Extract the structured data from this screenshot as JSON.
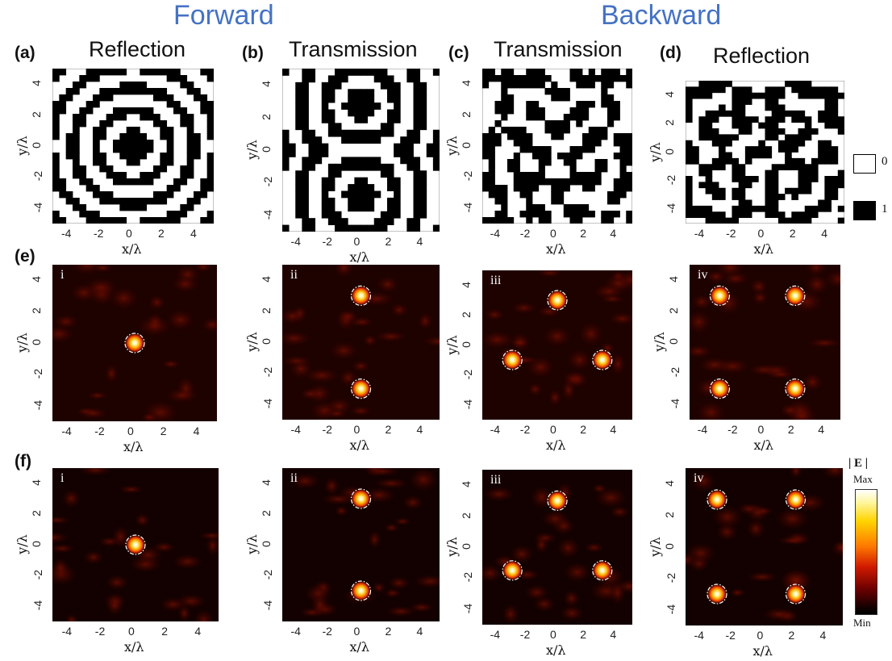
{
  "headers": {
    "forward": "Forward",
    "backward": "Backward"
  },
  "panel_labels": {
    "a": "(a)",
    "b": "(b)",
    "c": "(c)",
    "d": "(d)",
    "e": "(e)",
    "f": "(f)"
  },
  "panel_titles": {
    "a": "Reflection",
    "b": "Transmission",
    "c": "Transmission",
    "d": "Reflection"
  },
  "sub_labels": [
    "i",
    "ii",
    "iii",
    "iv"
  ],
  "axis": {
    "x": "x/λ",
    "y": "y/λ",
    "ticks": [
      "-4",
      "-2",
      "0",
      "2",
      "4"
    ],
    "yticks": [
      "4",
      "2",
      "0",
      "-2",
      "-4"
    ]
  },
  "binary_legend": {
    "zero": "0",
    "one": "1"
  },
  "colorbar": {
    "title": "| E |",
    "max": "Max",
    "min": "Min"
  },
  "colors": {
    "header": "#4472c4",
    "binary_one": "#000000",
    "binary_zero": "#ffffff"
  },
  "chart_data": [
    {
      "type": "heatmap",
      "panel": "a",
      "title": "Reflection",
      "xlabel": "x/λ",
      "ylabel": "y/λ",
      "xlim": [
        -5,
        5
      ],
      "ylim": [
        -5,
        5
      ],
      "pattern": "concentric rings (binary 0/1)"
    },
    {
      "type": "heatmap",
      "panel": "b",
      "title": "Transmission",
      "xlabel": "x/λ",
      "ylabel": "y/λ",
      "xlim": [
        -5,
        5
      ],
      "ylim": [
        -5,
        5
      ],
      "pattern": "binary two-lobe hologram"
    },
    {
      "type": "heatmap",
      "panel": "c",
      "title": "Transmission",
      "xlabel": "x/λ",
      "ylabel": "y/λ",
      "xlim": [
        -5,
        5
      ],
      "ylim": [
        -5,
        5
      ],
      "pattern": "binary three-focus hologram"
    },
    {
      "type": "heatmap",
      "panel": "d",
      "title": "Reflection",
      "xlabel": "x/λ",
      "ylabel": "y/λ",
      "xlim": [
        -5,
        5
      ],
      "ylim": [
        -5,
        5
      ],
      "pattern": "binary four-focus hologram"
    },
    {
      "type": "heatmap",
      "panel": "e.i",
      "xlabel": "x/λ",
      "ylabel": "y/λ",
      "foci": [
        [
          0,
          0
        ]
      ]
    },
    {
      "type": "heatmap",
      "panel": "e.ii",
      "xlabel": "x/λ",
      "ylabel": "y/λ",
      "foci": [
        [
          0,
          3
        ],
        [
          0,
          -3
        ]
      ]
    },
    {
      "type": "heatmap",
      "panel": "e.iii",
      "xlabel": "x/λ",
      "ylabel": "y/λ",
      "foci": [
        [
          0,
          3
        ],
        [
          -3,
          -1
        ],
        [
          3,
          -1
        ]
      ]
    },
    {
      "type": "heatmap",
      "panel": "e.iv",
      "xlabel": "x/λ",
      "ylabel": "y/λ",
      "foci": [
        [
          -3,
          3
        ],
        [
          2,
          3
        ],
        [
          -3,
          -3
        ],
        [
          2,
          -3
        ]
      ]
    },
    {
      "type": "heatmap",
      "panel": "f.i",
      "xlabel": "x/λ",
      "ylabel": "y/λ",
      "foci": [
        [
          0,
          0
        ]
      ]
    },
    {
      "type": "heatmap",
      "panel": "f.ii",
      "xlabel": "x/λ",
      "ylabel": "y/λ",
      "foci": [
        [
          0,
          3
        ],
        [
          0,
          -3
        ]
      ]
    },
    {
      "type": "heatmap",
      "panel": "f.iii",
      "xlabel": "x/λ",
      "ylabel": "y/λ",
      "foci": [
        [
          0,
          3
        ],
        [
          -3,
          -1.5
        ],
        [
          3,
          -1.5
        ]
      ]
    },
    {
      "type": "heatmap",
      "panel": "f.iv",
      "xlabel": "x/λ",
      "ylabel": "y/λ",
      "foci": [
        [
          -3,
          3
        ],
        [
          2,
          3
        ],
        [
          -3,
          -3
        ],
        [
          2,
          -3
        ]
      ]
    }
  ]
}
